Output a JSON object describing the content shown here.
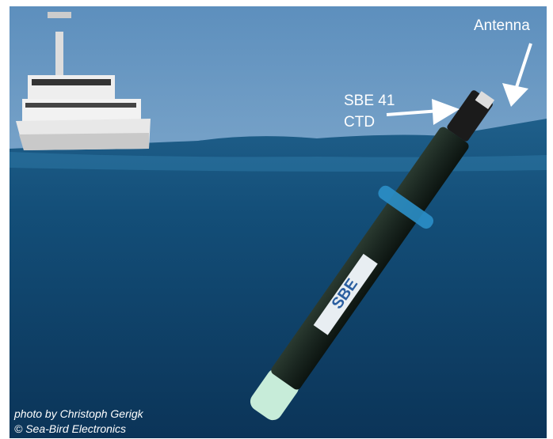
{
  "annotations": {
    "antenna": "Antenna",
    "ctd_line1": "SBE 41",
    "ctd_line2": "CTD"
  },
  "float_label": "SBE",
  "credit": {
    "line1": "photo by Christoph Gerigk",
    "line2": "© Sea-Bird Electronics"
  }
}
